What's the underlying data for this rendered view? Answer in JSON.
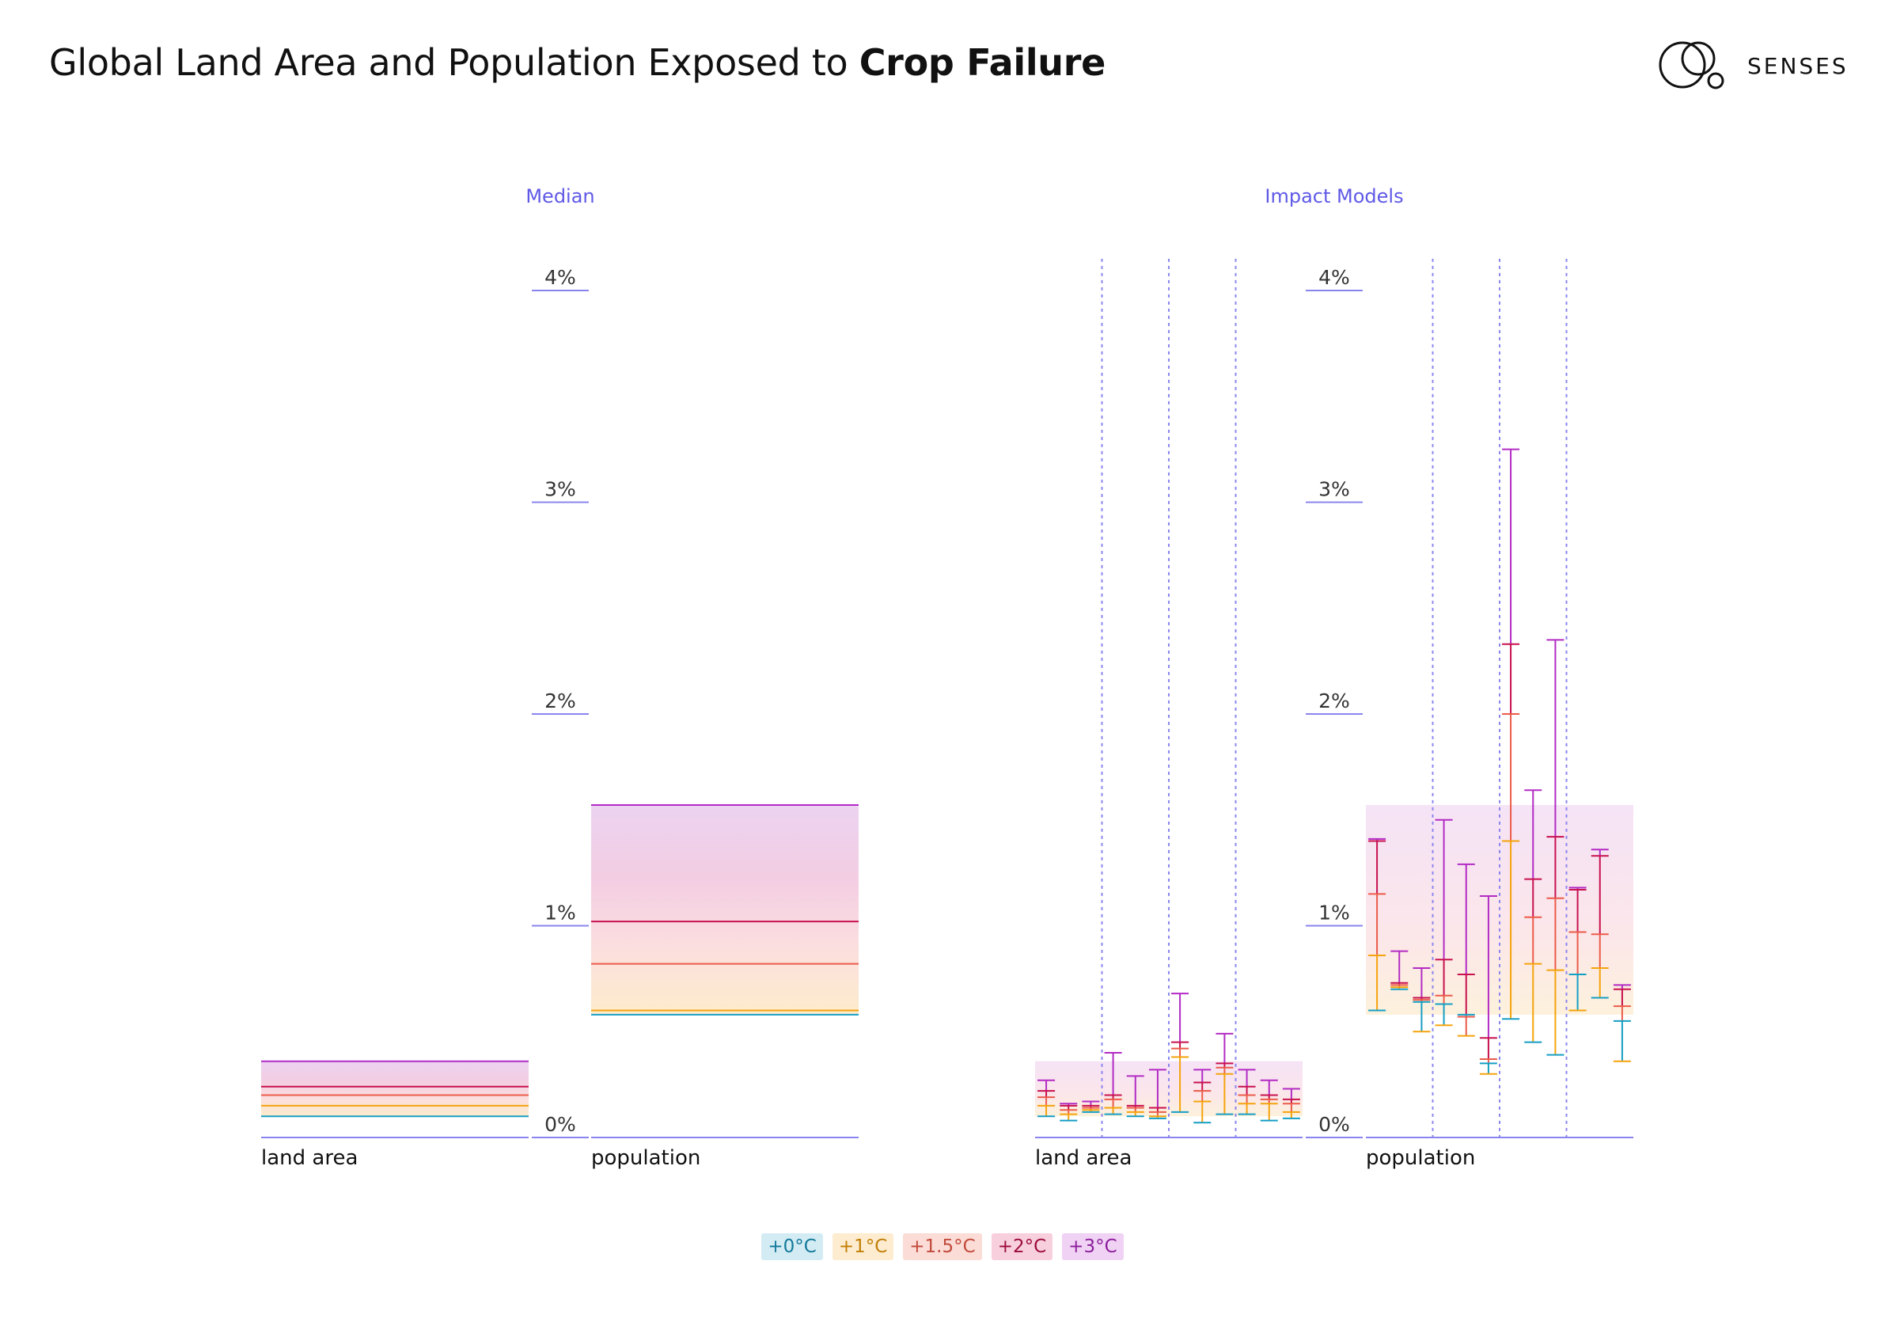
{
  "header": {
    "title_regular": "Global Land Area and Population Exposed to ",
    "title_bold": "Crop Failure"
  },
  "logo": {
    "text": "SENSES",
    "icon": "senses-circles-logo"
  },
  "colors": {
    "+0°C": "#159ec4",
    "+1°C": "#f5a30c",
    "+1.5°C": "#eb5b4a",
    "+2°C": "#c8114f",
    "+3°C": "#b22bc4",
    "axis": "#8a85ee",
    "panel_title": "#5f59e6"
  },
  "legend": [
    {
      "label": "+0°C",
      "bg": "#d3ecf4",
      "fg": "#13799a"
    },
    {
      "label": "+1°C",
      "bg": "#fdecd0",
      "fg": "#c27f06"
    },
    {
      "label": "+1.5°C",
      "bg": "#fbdcd6",
      "fg": "#c24a3c"
    },
    {
      "label": "+2°C",
      "bg": "#f8cfdd",
      "fg": "#9c0c3c"
    },
    {
      "label": "+3°C",
      "bg": "#f0d2f4",
      "fg": "#8c1e9c"
    }
  ],
  "chart_data": [
    {
      "type": "bar",
      "title": "Median",
      "ylim": [
        0,
        4
      ],
      "yticks": [
        "0%",
        "1%",
        "2%",
        "3%",
        "4%"
      ],
      "categories": [
        "land area",
        "population"
      ],
      "series": [
        {
          "name": "+0°C",
          "values": [
            0.1,
            0.58
          ]
        },
        {
          "name": "+1°C",
          "values": [
            0.15,
            0.6
          ]
        },
        {
          "name": "+1.5°C",
          "values": [
            0.2,
            0.82
          ]
        },
        {
          "name": "+2°C",
          "values": [
            0.24,
            1.02
          ]
        },
        {
          "name": "+3°C",
          "values": [
            0.36,
            1.57
          ]
        }
      ]
    },
    {
      "type": "scatter",
      "title": "Impact Models",
      "ylim": [
        0,
        4
      ],
      "yticks": [
        "0%",
        "1%",
        "2%",
        "3%",
        "4%"
      ],
      "categories": [
        "land area",
        "population"
      ],
      "groups": 4,
      "models_per_group": 3,
      "background_range": [
        [
          0.1,
          0.36
        ],
        [
          0.58,
          1.57
        ]
      ],
      "series": [
        {
          "name": "+0°C",
          "values": [
            [
              0.1,
              0.08,
              0.12,
              0.11,
              0.1,
              0.09,
              0.12,
              0.07,
              0.11,
              0.11,
              0.08,
              0.09
            ],
            [
              0.6,
              0.7,
              0.64,
              0.63,
              0.58,
              0.35,
              0.56,
              0.45,
              0.39,
              0.77,
              0.66,
              0.55
            ]
          ]
        },
        {
          "name": "+1°C",
          "values": [
            [
              0.15,
              0.11,
              0.13,
              0.14,
              0.12,
              0.1,
              0.38,
              0.17,
              0.3,
              0.16,
              0.16,
              0.12
            ],
            [
              0.86,
              0.71,
              0.5,
              0.53,
              0.48,
              0.3,
              1.4,
              0.82,
              0.79,
              0.6,
              0.8,
              0.36
            ]
          ]
        },
        {
          "name": "+1.5°C",
          "values": [
            [
              0.19,
              0.13,
              0.14,
              0.18,
              0.14,
              0.12,
              0.42,
              0.22,
              0.33,
              0.2,
              0.18,
              0.16
            ],
            [
              1.15,
              0.72,
              0.65,
              0.67,
              0.57,
              0.37,
              2.0,
              1.04,
              1.13,
              0.97,
              0.96,
              0.62
            ]
          ]
        },
        {
          "name": "+2°C",
          "values": [
            [
              0.22,
              0.15,
              0.15,
              0.2,
              0.15,
              0.14,
              0.45,
              0.26,
              0.35,
              0.24,
              0.2,
              0.18
            ],
            [
              1.4,
              0.73,
              0.66,
              0.84,
              0.77,
              0.47,
              2.33,
              1.22,
              1.42,
              1.17,
              1.33,
              0.7
            ]
          ]
        },
        {
          "name": "+3°C",
          "values": [
            [
              0.27,
              0.16,
              0.17,
              0.4,
              0.29,
              0.32,
              0.68,
              0.32,
              0.49,
              0.32,
              0.27,
              0.23
            ],
            [
              1.41,
              0.88,
              0.8,
              1.5,
              1.29,
              1.14,
              3.25,
              1.64,
              2.35,
              1.18,
              1.36,
              0.72
            ]
          ]
        }
      ]
    }
  ]
}
